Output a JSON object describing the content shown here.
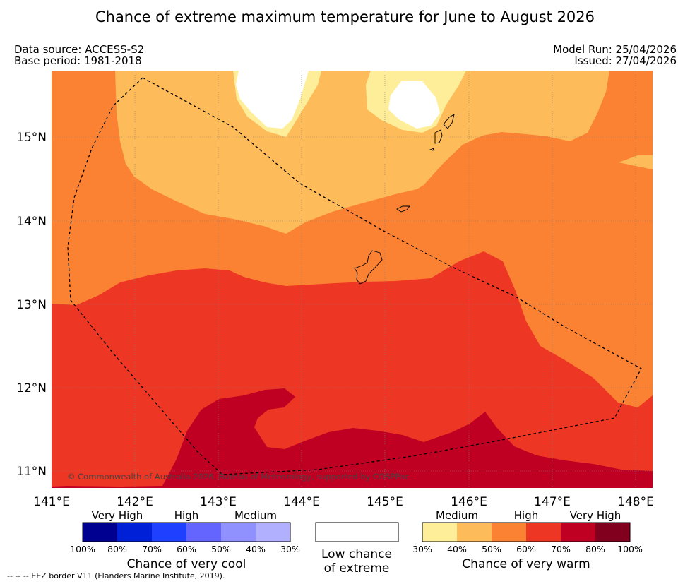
{
  "title": "Chance of extreme maximum temperature for June to August 2026",
  "meta": {
    "data_source": "Data source: ACCESS-S2",
    "base_period": "Base period: 1981-2018",
    "model_run": "Model Run: 25/04/2026",
    "issued": "Issued: 27/04/2026"
  },
  "map": {
    "lon_range": [
      141,
      148.2
    ],
    "lat_range": [
      10.8,
      15.8
    ],
    "lon_ticks": [
      "141°E",
      "142°E",
      "143°E",
      "144°E",
      "145°E",
      "146°E",
      "147°E",
      "148°E"
    ],
    "lat_ticks": [
      "15°N",
      "14°N",
      "13°N",
      "12°N",
      "11°N"
    ],
    "copyright": "© Commonwealth of Australia 2026, Bureau of Meteorology, supported by COSPPac"
  },
  "legend_cool": {
    "categories": [
      {
        "label": "Very High",
        "color": "#00008b"
      },
      {
        "label": "High",
        "color": "#1f3cff"
      },
      {
        "label": "Medium",
        "color": "#8c8cff"
      }
    ],
    "colors": [
      "#000090",
      "#0020d8",
      "#2040ff",
      "#6464ff",
      "#9090ff",
      "#b0b0ff"
    ],
    "ticks": [
      "100%",
      "80%",
      "70%",
      "60%",
      "50%",
      "40%",
      "30%"
    ],
    "caption": "Chance of very cool"
  },
  "legend_low": {
    "color": "#ffffff",
    "caption_line1": "Low chance",
    "caption_line2": "of extreme"
  },
  "legend_warm": {
    "categories": [
      {
        "label": "Medium",
        "color": "#fdb95c"
      },
      {
        "label": "High",
        "color": "#f58230"
      },
      {
        "label": "Very High",
        "color": "#c0001e"
      }
    ],
    "colors": [
      "#ffee99",
      "#fdbb5a",
      "#fb8133",
      "#ed3724",
      "#c00023",
      "#80001e"
    ],
    "ticks": [
      "30%",
      "40%",
      "50%",
      "60%",
      "70%",
      "80%",
      "100%"
    ],
    "caption": "Chance of very warm"
  },
  "footer": "--  --  -- EEZ border V11 (Flanders Marine Institute, 2019)."
}
